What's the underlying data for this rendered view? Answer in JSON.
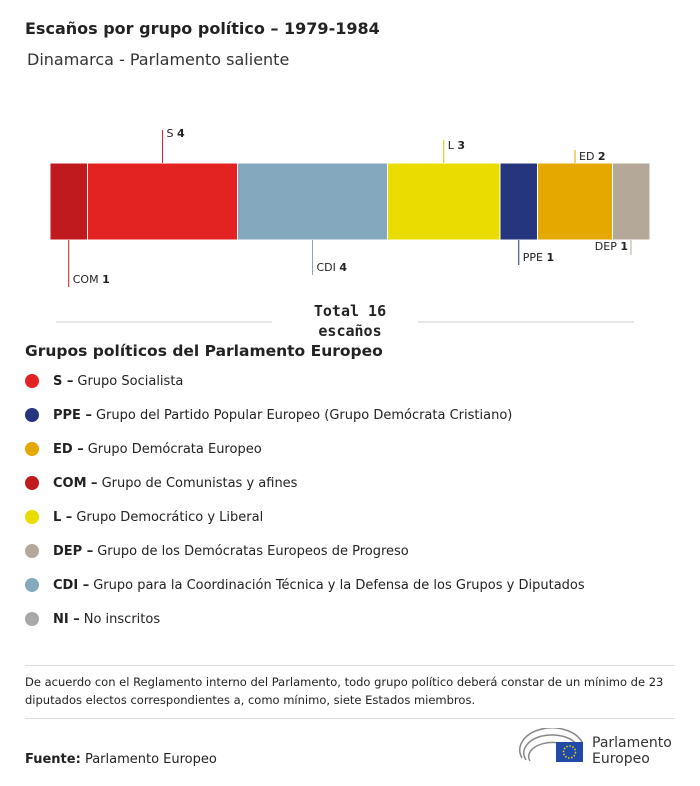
{
  "chart_data": {
    "type": "stacked-bar",
    "title": "Escaños por grupo político – 1979-1984",
    "subtitle": "Dinamarca - Parlamento saliente",
    "xlim": [
      0,
      16
    ],
    "series": [
      {
        "name": "COM",
        "color": "#c0191e",
        "values": [
          1
        ]
      },
      {
        "name": "S",
        "color": "#e32322",
        "values": [
          4
        ]
      },
      {
        "name": "CDI",
        "color": "#84a9bf",
        "values": [
          4
        ]
      },
      {
        "name": "L",
        "color": "#ebdc00",
        "values": [
          3
        ]
      },
      {
        "name": "PPE",
        "color": "#25357e",
        "values": [
          1
        ]
      },
      {
        "name": "ED",
        "color": "#e5a800",
        "values": [
          2
        ]
      },
      {
        "name": "DEP",
        "color": "#b4a999",
        "values": [
          1
        ]
      }
    ],
    "total_label": "Total 16 escaños"
  },
  "legend": {
    "title": "Grupos políticos del Parlamento Europeo",
    "items": [
      {
        "abbr": "S –",
        "name": "Grupo Socialista",
        "color": "#e32322"
      },
      {
        "abbr": "PPE –",
        "name": "Grupo del Partido Popular Europeo (Grupo Demócrata Cristiano)",
        "color": "#25357e"
      },
      {
        "abbr": "ED –",
        "name": "Grupo Demócrata Europeo",
        "color": "#e5a800"
      },
      {
        "abbr": "COM –",
        "name": "Grupo de Comunistas y afines",
        "color": "#c0191e"
      },
      {
        "abbr": "L –",
        "name": "Grupo Democrático y Liberal",
        "color": "#ebdc00"
      },
      {
        "abbr": "DEP –",
        "name": "Grupo de los Demócratas Europeos de Progreso",
        "color": "#b4a999"
      },
      {
        "abbr": "CDI –",
        "name": "Grupo para la Coordinación Técnica y la Defensa de los Grupos y Diputados",
        "color": "#84a9bf"
      },
      {
        "abbr": "NI –",
        "name": "No inscritos",
        "color": "#a8a8a8"
      }
    ]
  },
  "note": "De acuerdo con el Reglamento interno del Parlamento, todo grupo político deberá constar de un mínimo de 23 diputados electos correspondientes a, como mínimo, siete Estados miembros.",
  "source": {
    "label": "Fuente:",
    "text": "Parlamento Europeo"
  },
  "logo": [
    "Parlamento",
    "Europeo"
  ]
}
